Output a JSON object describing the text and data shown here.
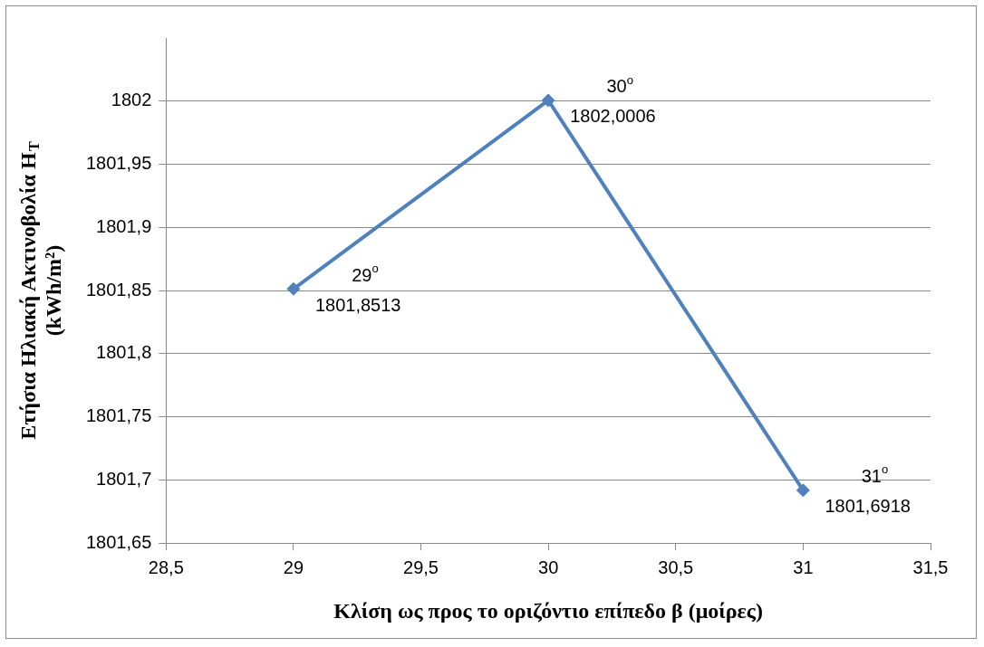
{
  "chart_data": {
    "type": "line",
    "xlabel": "Κλίση ως προς το οριζόντιο επίπεδο β (μοίρες)",
    "ylabel": "Ετήσια Ηλιακή Ακτινοβολία H$_{T}$\n(kWh/m²)",
    "x": [
      29,
      30,
      31
    ],
    "series": [
      {
        "color": "#4f81bd",
        "values": [
          1801.8513,
          1802.0006,
          1801.6918
        ],
        "value_labels": [
          "1801,8513",
          "1802,0006",
          "1801,6918"
        ]
      }
    ],
    "annotations": [
      "29$^{o}$",
      "30$^{o}$",
      "31$^{o}$"
    ],
    "xlim": [
      28.5,
      31.5
    ],
    "xticks": [
      {
        "value": 28.5,
        "label": "28,5"
      },
      29,
      {
        "value": 29.5,
        "label": "29,5"
      },
      30,
      {
        "value": 30.5,
        "label": "30,5"
      },
      31,
      {
        "value": 31.5,
        "label": "31,5"
      }
    ],
    "ylim": [
      1801.65,
      1802.05
    ],
    "yticks": [
      {
        "value": 1801.65,
        "label": "1801,65"
      },
      {
        "value": 1801.7,
        "label": "1801,7"
      },
      {
        "value": 1801.75,
        "label": "1801,75"
      },
      {
        "value": 1801.8,
        "label": "1801,8"
      },
      {
        "value": 1801.85,
        "label": "1801,85"
      },
      {
        "value": 1801.9,
        "label": "1801,9"
      },
      {
        "value": 1801.95,
        "label": "1801,95"
      },
      1802
    ],
    "grid": "y",
    "legend": false,
    "marker": "diamond",
    "line_style": "solid"
  }
}
